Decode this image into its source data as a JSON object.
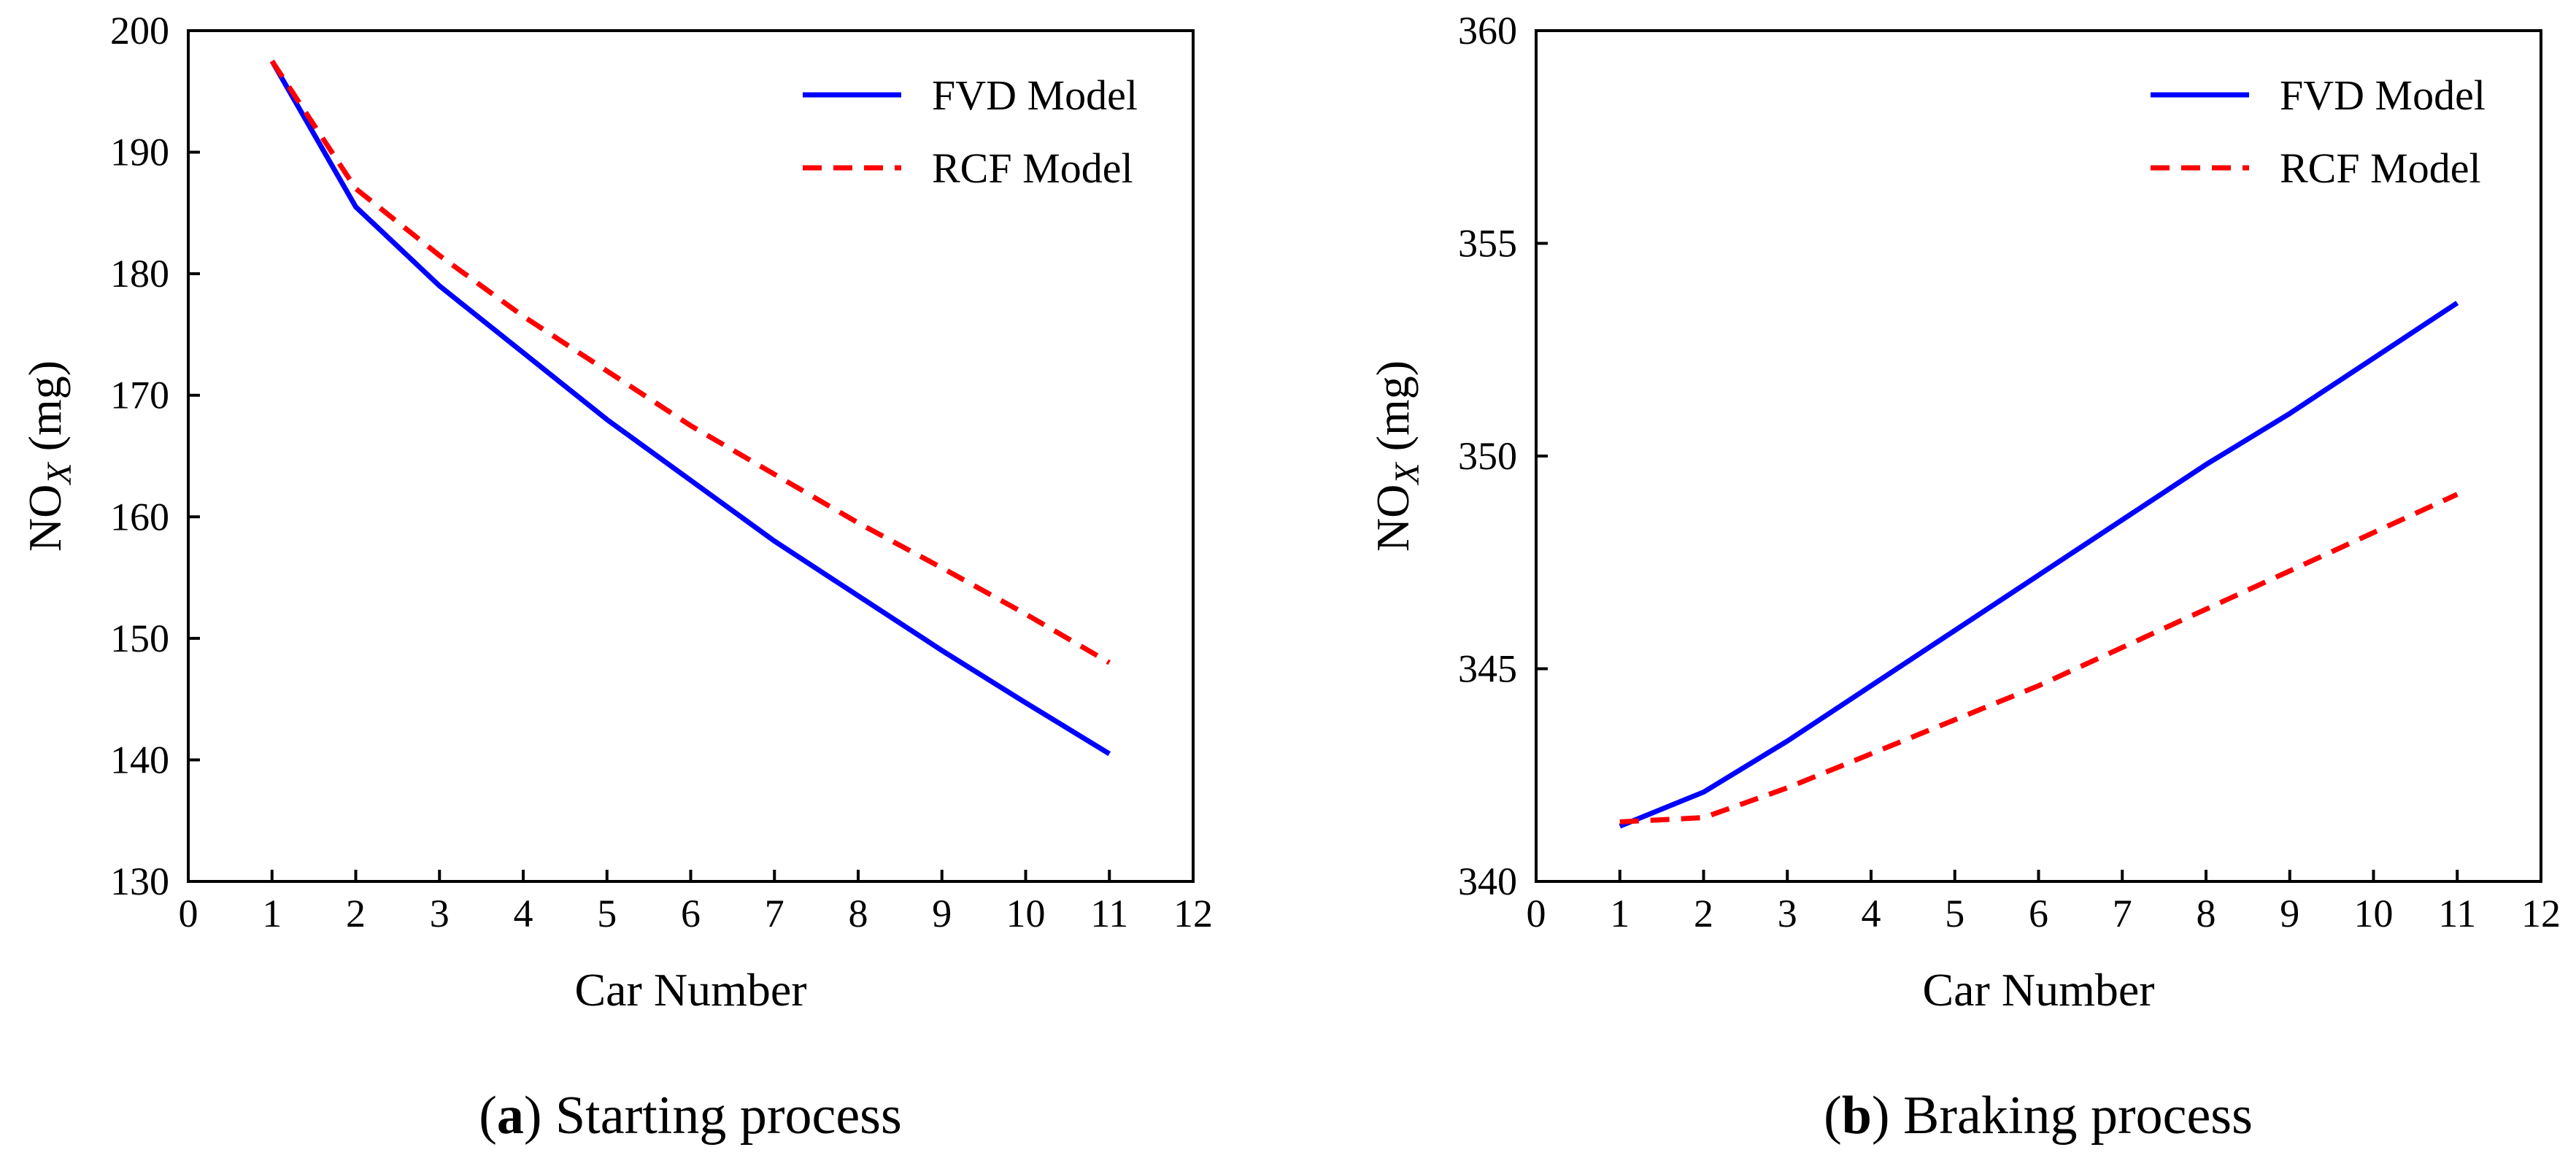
{
  "chart_data": [
    {
      "type": "line",
      "caption_letter": "a",
      "caption_text": ") Starting process",
      "caption_open": "(",
      "xlabel": "Car Number",
      "ylabel_main": "NO",
      "ylabel_sub": "X",
      "ylabel_unit": " (mg)",
      "xlim": [
        0,
        12
      ],
      "ylim": [
        130,
        200
      ],
      "xticks": [
        0,
        1,
        2,
        3,
        4,
        5,
        6,
        7,
        8,
        9,
        10,
        11,
        12
      ],
      "yticks": [
        130,
        140,
        150,
        160,
        170,
        180,
        190,
        200
      ],
      "grid": false,
      "legend_position": "top-right",
      "series": [
        {
          "name": "FVD Model",
          "color": "#0000ff",
          "dash": "solid",
          "x": [
            1,
            2,
            3,
            4,
            5,
            6,
            7,
            8,
            9,
            10,
            11
          ],
          "y": [
            197.5,
            185.5,
            179.0,
            173.5,
            168.0,
            163.0,
            158.0,
            153.5,
            149.0,
            144.7,
            140.5
          ]
        },
        {
          "name": "RCF Model",
          "color": "#ff0000",
          "dash": "dashed",
          "x": [
            1,
            2,
            3,
            4,
            5,
            6,
            7,
            8,
            9,
            10,
            11
          ],
          "y": [
            197.5,
            187.0,
            181.5,
            176.5,
            172.0,
            167.5,
            163.5,
            159.5,
            155.8,
            152.0,
            148.0
          ]
        }
      ]
    },
    {
      "type": "line",
      "caption_letter": "b",
      "caption_text": ") Braking process",
      "caption_open": "(",
      "xlabel": "Car Number",
      "ylabel_main": "NO",
      "ylabel_sub": "X",
      "ylabel_unit": " (mg)",
      "xlim": [
        0,
        12
      ],
      "ylim": [
        340,
        360
      ],
      "xticks": [
        0,
        1,
        2,
        3,
        4,
        5,
        6,
        7,
        8,
        9,
        10,
        11,
        12
      ],
      "yticks": [
        340,
        345,
        350,
        355,
        360
      ],
      "grid": false,
      "legend_position": "top-right",
      "series": [
        {
          "name": "FVD Model",
          "color": "#0000ff",
          "dash": "solid",
          "x": [
            1,
            2,
            3,
            4,
            5,
            6,
            7,
            8,
            9,
            10,
            11
          ],
          "y": [
            341.3,
            342.1,
            343.3,
            344.6,
            345.9,
            347.2,
            348.5,
            349.8,
            351.0,
            352.3,
            353.6
          ]
        },
        {
          "name": "RCF Model",
          "color": "#ff0000",
          "dash": "dashed",
          "x": [
            1,
            2,
            3,
            4,
            5,
            6,
            7,
            8,
            9,
            10,
            11
          ],
          "y": [
            341.4,
            341.5,
            342.2,
            343.0,
            343.8,
            344.6,
            345.5,
            346.4,
            347.3,
            348.2,
            349.1
          ]
        }
      ]
    }
  ]
}
